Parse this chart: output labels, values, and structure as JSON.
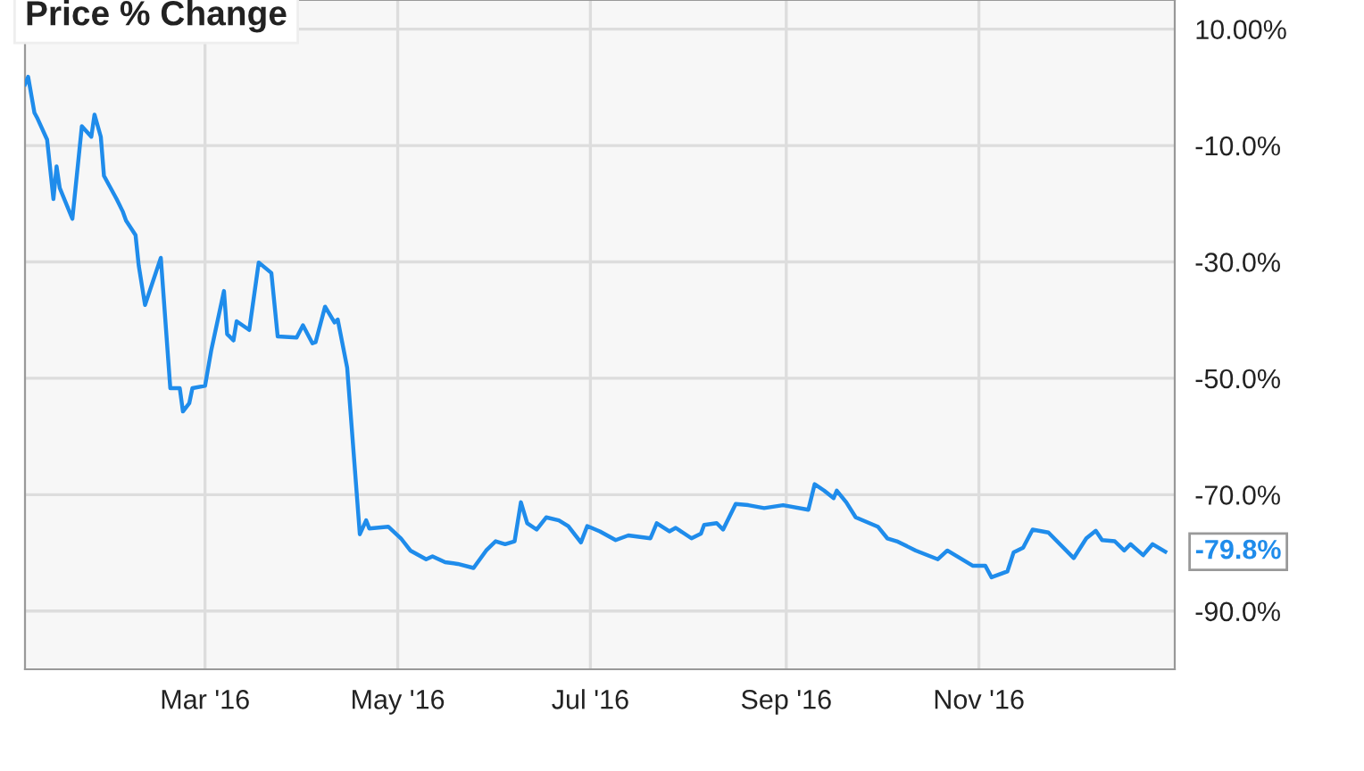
{
  "chart_data": {
    "type": "line",
    "title": "Price % Change",
    "x": [
      "2016-01-04",
      "2016-01-05",
      "2016-01-07",
      "2016-01-08",
      "2016-01-11",
      "2016-01-13",
      "2016-01-14",
      "2016-01-15",
      "2016-01-19",
      "2016-01-22",
      "2016-01-25",
      "2016-01-26",
      "2016-01-28",
      "2016-01-29",
      "2016-02-02",
      "2016-02-04",
      "2016-02-05",
      "2016-02-08",
      "2016-02-09",
      "2016-02-11",
      "2016-02-16",
      "2016-02-19",
      "2016-02-22",
      "2016-02-23",
      "2016-02-25",
      "2016-02-26",
      "2016-03-01",
      "2016-03-03",
      "2016-03-07",
      "2016-03-08",
      "2016-03-10",
      "2016-03-11",
      "2016-03-15",
      "2016-03-18",
      "2016-03-22",
      "2016-03-24",
      "2016-03-30",
      "2016-04-01",
      "2016-04-04",
      "2016-04-05",
      "2016-04-08",
      "2016-04-11",
      "2016-04-12",
      "2016-04-15",
      "2016-04-19",
      "2016-04-21",
      "2016-04-22",
      "2016-04-28",
      "2016-05-02",
      "2016-05-05",
      "2016-05-10",
      "2016-05-12",
      "2016-05-16",
      "2016-05-20",
      "2016-05-25",
      "2016-05-29",
      "2016-06-01",
      "2016-06-04",
      "2016-06-07",
      "2016-06-09",
      "2016-06-11",
      "2016-06-14",
      "2016-06-17",
      "2016-06-21",
      "2016-06-24",
      "2016-06-28",
      "2016-06-30",
      "2016-07-04",
      "2016-07-09",
      "2016-07-13",
      "2016-07-20",
      "2016-07-22",
      "2016-07-26",
      "2016-07-28",
      "2016-08-02",
      "2016-08-05",
      "2016-08-06",
      "2016-08-10",
      "2016-08-12",
      "2016-08-16",
      "2016-08-20",
      "2016-08-25",
      "2016-08-31",
      "2016-09-08",
      "2016-09-10",
      "2016-09-13",
      "2016-09-16",
      "2016-09-17",
      "2016-09-20",
      "2016-09-23",
      "2016-09-30",
      "2016-10-03",
      "2016-10-06",
      "2016-10-12",
      "2016-10-19",
      "2016-10-22",
      "2016-10-30",
      "2016-11-03",
      "2016-11-05",
      "2016-11-10",
      "2016-11-12",
      "2016-11-15",
      "2016-11-18",
      "2016-11-23",
      "2016-12-01",
      "2016-12-05",
      "2016-12-08",
      "2016-12-10",
      "2016-12-14",
      "2016-12-17",
      "2016-12-19",
      "2016-12-23",
      "2016-12-26",
      "2016-12-30"
    ],
    "series": [
      {
        "color": "#1f8ceb",
        "values": [
          0.5,
          1.8,
          -4.4,
          -5.4,
          -9.0,
          -19.2,
          -13.6,
          -17.3,
          -22.6,
          -6.7,
          -8.5,
          -4.7,
          -8.5,
          -15.2,
          -19.2,
          -21.4,
          -22.9,
          -25.4,
          -30.6,
          -37.4,
          -29.3,
          -51.7,
          -51.7,
          -55.7,
          -54.3,
          -51.7,
          -51.3,
          -45.1,
          -35.0,
          -42.4,
          -43.5,
          -40.2,
          -41.7,
          -30.1,
          -31.9,
          -42.8,
          -43.0,
          -40.9,
          -44.0,
          -43.8,
          -37.7,
          -40.4,
          -39.9,
          -48.2,
          -76.8,
          -74.4,
          -75.8,
          -75.5,
          -77.5,
          -79.6,
          -81.1,
          -80.6,
          -81.6,
          -81.9,
          -82.6,
          -79.6,
          -78.0,
          -78.5,
          -78.0,
          -71.3,
          -74.9,
          -76.0,
          -73.9,
          -74.4,
          -75.4,
          -78.2,
          -75.4,
          -76.3,
          -77.8,
          -77.0,
          -77.5,
          -74.9,
          -76.3,
          -75.7,
          -77.5,
          -76.7,
          -75.2,
          -74.9,
          -76.0,
          -71.6,
          -71.8,
          -72.3,
          -71.8,
          -72.6,
          -68.2,
          -69.3,
          -70.6,
          -69.3,
          -71.3,
          -73.9,
          -75.5,
          -77.5,
          -78.0,
          -79.6,
          -81.1,
          -79.6,
          -82.2,
          -82.2,
          -84.2,
          -83.2,
          -79.9,
          -79.1,
          -76.0,
          -76.5,
          -80.9,
          -77.5,
          -76.2,
          -77.8,
          -78.0,
          -79.6,
          -78.5,
          -80.4,
          -78.5,
          -79.8
        ]
      }
    ],
    "xlim": [
      "2016-01-04",
      "2017-01-02"
    ],
    "xticks": [
      {
        "value": "2016-03-01",
        "label": "Mar '16"
      },
      {
        "value": "2016-05-01",
        "label": "May '16"
      },
      {
        "value": "2016-07-01",
        "label": "Jul '16"
      },
      {
        "value": "2016-09-01",
        "label": "Sep '16"
      },
      {
        "value": "2016-11-01",
        "label": "Nov '16"
      }
    ],
    "ylim": [
      -100,
      15
    ],
    "yticks": [
      {
        "value": 10,
        "label": "10.00%"
      },
      {
        "value": -10,
        "label": "-10.0%"
      },
      {
        "value": -30,
        "label": "-30.0%"
      },
      {
        "value": -50,
        "label": "-50.0%"
      },
      {
        "value": -70,
        "label": "-70.0%"
      },
      {
        "value": -90,
        "label": "-90.0%"
      }
    ],
    "grid": true,
    "legend": false,
    "marker": "none",
    "line_style": "solid",
    "annotations": [
      {
        "text": "-79.8%",
        "x": "2016-12-30",
        "y": -79.8
      }
    ]
  }
}
